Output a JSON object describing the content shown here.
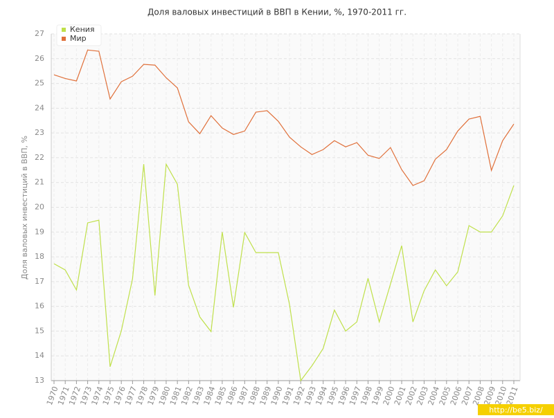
{
  "chart_data": {
    "type": "line",
    "title": "Доля валовых инвестиций в ВВП в Кении, %, 1970-2011 гг.",
    "y_label": "Доля валовых инвестиций в ВВП, %",
    "watermark": "http://be5.biz/",
    "categories": [
      "1970",
      "1971",
      "1972",
      "1973",
      "1974",
      "1975",
      "1976",
      "1977",
      "1978",
      "1979",
      "1980",
      "1981",
      "1982",
      "1983",
      "1984",
      "1985",
      "1986",
      "1987",
      "1988",
      "1989",
      "1990",
      "1991",
      "1992",
      "1993",
      "1994",
      "1995",
      "1996",
      "1997",
      "1998",
      "1999",
      "2000",
      "2001",
      "2002",
      "2003",
      "2004",
      "2005",
      "2006",
      "2007",
      "2008",
      "2009",
      "2010",
      "2011"
    ],
    "series": [
      {
        "name": "Кения",
        "color": "#bfe04a",
        "values": [
          17.72,
          17.47,
          16.66,
          19.37,
          19.48,
          13.56,
          15.01,
          17.11,
          21.74,
          16.44,
          21.74,
          20.93,
          16.85,
          15.57,
          14.98,
          19.0,
          15.96,
          18.98,
          18.17,
          18.17,
          18.17,
          16.07,
          13.0,
          13.6,
          14.3,
          15.85,
          15.0,
          15.37,
          17.13,
          15.37,
          16.9,
          18.45,
          15.37,
          16.63,
          17.47,
          16.83,
          17.39,
          19.26,
          19.0,
          19.0,
          19.65,
          20.88
        ]
      },
      {
        "name": "Мир",
        "color": "#e0703a",
        "values": [
          25.35,
          25.2,
          25.1,
          26.35,
          26.3,
          24.37,
          25.07,
          25.29,
          25.77,
          25.74,
          25.23,
          24.82,
          23.45,
          22.97,
          23.7,
          23.2,
          22.94,
          23.08,
          23.84,
          23.9,
          23.47,
          22.83,
          22.44,
          22.13,
          22.33,
          22.69,
          22.44,
          22.61,
          22.1,
          21.97,
          22.41,
          21.52,
          20.88,
          21.07,
          21.94,
          22.33,
          23.08,
          23.56,
          23.67,
          21.49,
          22.69,
          23.36
        ]
      }
    ],
    "ylim": [
      13,
      27
    ],
    "yticks": [
      13,
      14,
      15,
      16,
      17,
      18,
      19,
      20,
      21,
      22,
      23,
      24,
      25,
      26,
      27
    ],
    "grid": true,
    "legend": "top-left"
  }
}
